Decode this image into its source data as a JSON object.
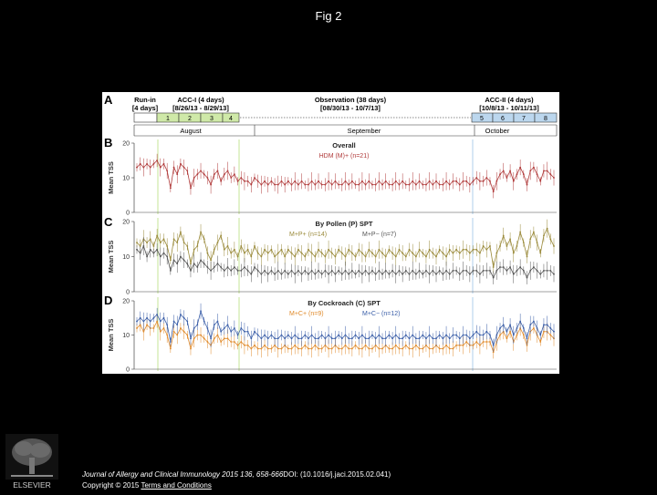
{
  "figure": {
    "title": "Fig 2"
  },
  "timeline": {
    "panel_label": "A",
    "segments": [
      {
        "name": "Run-in",
        "detail": "[4 days]"
      },
      {
        "name": "ACC-I (4 days)",
        "detail": "[8/26/13 - 8/29/13]"
      },
      {
        "name": "Observation (38 days)",
        "detail": "[08/30/13 - 10/7/13]"
      },
      {
        "name": "ACC-II (4 days)",
        "detail": "[10/8/13 - 10/11/13]"
      }
    ],
    "days_acc1": [
      "1",
      "2",
      "3",
      "4"
    ],
    "days_acc2": [
      "5",
      "6",
      "7",
      "8"
    ],
    "months": [
      "August",
      "September",
      "October"
    ]
  },
  "colors": {
    "hdm": "#b03a3a",
    "pollen_pos": "#9a8a3a",
    "pollen_neg": "#555555",
    "cockroach_pos": "#e08a2a",
    "cockroach_neg": "#3a5ea8",
    "acc1_fill": "#cfe9a8",
    "acc2_fill": "#bcd7ee"
  },
  "chart_data": [
    {
      "panel": "B",
      "type": "line",
      "title": "Overall",
      "ylabel": "Mean TSS",
      "ylim": [
        0,
        20
      ],
      "yticks": [
        "0",
        "10",
        "20"
      ],
      "series": [
        {
          "name": "HDM (M)+ (n=21)",
          "color": "#b03a3a",
          "values": [
            13,
            14,
            13,
            14,
            13,
            14,
            15,
            13,
            14,
            12,
            7,
            13,
            11,
            14,
            13,
            12,
            7,
            10,
            11,
            12,
            11,
            10,
            8,
            11,
            12,
            9,
            11,
            12,
            10,
            11,
            9,
            10,
            9,
            9,
            8,
            10,
            9,
            8,
            9,
            8,
            9,
            8,
            8,
            9,
            8,
            9,
            8,
            9,
            8,
            9,
            8,
            8,
            9,
            8,
            9,
            8,
            8,
            9,
            8,
            9,
            8,
            8,
            9,
            8,
            9,
            8,
            8,
            9,
            8,
            9,
            8,
            8,
            9,
            8,
            9,
            8,
            8,
            9,
            8,
            9,
            8,
            8,
            9,
            8,
            9,
            8,
            8,
            9,
            8,
            9,
            8,
            8,
            9,
            8,
            9,
            9,
            8,
            9,
            9,
            8,
            9,
            10,
            9,
            9,
            10,
            9,
            6,
            9,
            11,
            12,
            10,
            12,
            9,
            11,
            13,
            11,
            8,
            12,
            13,
            11,
            9,
            12,
            12,
            11,
            10
          ]
        }
      ]
    },
    {
      "panel": "C",
      "type": "line",
      "title": "By Pollen (P) SPT",
      "ylabel": "Mean TSS",
      "ylim": [
        0,
        20
      ],
      "yticks": [
        "0",
        "10",
        "20"
      ],
      "series": [
        {
          "name": "M+P+ (n=14)",
          "color": "#9a8a3a",
          "values": [
            14,
            13,
            15,
            14,
            15,
            13,
            16,
            14,
            15,
            13,
            9,
            15,
            14,
            17,
            14,
            13,
            8,
            12,
            13,
            17,
            15,
            11,
            9,
            12,
            14,
            16,
            12,
            13,
            11,
            12,
            10,
            13,
            11,
            12,
            10,
            13,
            11,
            10,
            12,
            11,
            12,
            10,
            11,
            12,
            10,
            12,
            11,
            10,
            12,
            11,
            10,
            12,
            11,
            10,
            12,
            11,
            10,
            12,
            11,
            10,
            12,
            11,
            10,
            12,
            11,
            10,
            12,
            11,
            10,
            12,
            11,
            10,
            12,
            11,
            10,
            12,
            11,
            10,
            12,
            11,
            10,
            12,
            11,
            10,
            12,
            11,
            10,
            12,
            11,
            10,
            12,
            11,
            10,
            12,
            11,
            12,
            11,
            12,
            12,
            11,
            12,
            12,
            11,
            13,
            12,
            13,
            7,
            11,
            13,
            16,
            13,
            15,
            11,
            13,
            17,
            14,
            10,
            15,
            17,
            14,
            11,
            16,
            18,
            15,
            13
          ]
        },
        {
          "name": "M+P− (n=7)",
          "color": "#555555",
          "values": [
            12,
            11,
            13,
            10,
            12,
            11,
            12,
            10,
            11,
            10,
            6,
            9,
            8,
            10,
            9,
            8,
            6,
            8,
            7,
            9,
            8,
            7,
            6,
            7,
            8,
            7,
            6,
            7,
            6,
            7,
            6,
            6,
            7,
            6,
            5,
            7,
            6,
            5,
            6,
            5,
            6,
            5,
            6,
            5,
            6,
            5,
            6,
            5,
            6,
            5,
            6,
            5,
            6,
            5,
            6,
            5,
            6,
            5,
            6,
            5,
            6,
            5,
            6,
            5,
            6,
            5,
            6,
            5,
            6,
            5,
            6,
            5,
            6,
            5,
            6,
            5,
            6,
            5,
            6,
            5,
            6,
            5,
            6,
            5,
            6,
            5,
            6,
            5,
            6,
            5,
            6,
            5,
            6,
            5,
            6,
            6,
            5,
            6,
            6,
            5,
            6,
            6,
            5,
            6,
            6,
            6,
            4,
            6,
            7,
            7,
            6,
            7,
            5,
            6,
            7,
            6,
            4,
            6,
            7,
            6,
            5,
            6,
            6,
            6,
            5
          ]
        }
      ]
    },
    {
      "panel": "D",
      "type": "line",
      "title": "By Cockroach (C) SPT",
      "ylabel": "Mean TSS",
      "ylim": [
        0,
        20
      ],
      "yticks": [
        "0",
        "10",
        "20"
      ],
      "series": [
        {
          "name": "M+C+ (n=9)",
          "color": "#e08a2a",
          "values": [
            12,
            13,
            11,
            13,
            12,
            12,
            14,
            11,
            12,
            10,
            6,
            11,
            10,
            12,
            11,
            10,
            6,
            9,
            10,
            10,
            9,
            8,
            7,
            9,
            10,
            8,
            9,
            9,
            8,
            8,
            7,
            8,
            7,
            7,
            6,
            7,
            6,
            6,
            7,
            6,
            6,
            7,
            6,
            6,
            7,
            6,
            6,
            7,
            6,
            6,
            7,
            6,
            6,
            7,
            6,
            6,
            7,
            6,
            6,
            7,
            6,
            6,
            7,
            6,
            6,
            7,
            6,
            6,
            7,
            6,
            6,
            7,
            6,
            6,
            7,
            6,
            6,
            7,
            6,
            6,
            7,
            6,
            6,
            7,
            6,
            6,
            7,
            6,
            6,
            7,
            6,
            6,
            7,
            6,
            6,
            7,
            7,
            7,
            8,
            7,
            7,
            8,
            7,
            8,
            8,
            8,
            5,
            8,
            10,
            11,
            9,
            11,
            8,
            10,
            12,
            10,
            7,
            11,
            12,
            10,
            8,
            11,
            11,
            10,
            9
          ]
        },
        {
          "name": "M+C− (n=12)",
          "color": "#3a5ea8",
          "values": [
            14,
            15,
            14,
            15,
            14,
            15,
            16,
            14,
            15,
            13,
            8,
            14,
            13,
            16,
            15,
            14,
            9,
            12,
            13,
            17,
            14,
            12,
            9,
            13,
            14,
            11,
            12,
            13,
            11,
            12,
            10,
            12,
            11,
            11,
            9,
            11,
            10,
            9,
            10,
            9,
            10,
            9,
            9,
            10,
            9,
            10,
            9,
            10,
            9,
            9,
            10,
            9,
            10,
            9,
            9,
            10,
            9,
            10,
            9,
            9,
            10,
            9,
            10,
            9,
            9,
            10,
            9,
            10,
            9,
            9,
            10,
            9,
            10,
            9,
            9,
            10,
            9,
            10,
            9,
            9,
            10,
            9,
            10,
            9,
            9,
            10,
            9,
            10,
            9,
            9,
            10,
            9,
            10,
            9,
            10,
            10,
            9,
            10,
            10,
            9,
            10,
            11,
            10,
            10,
            11,
            10,
            7,
            10,
            12,
            13,
            11,
            13,
            10,
            12,
            14,
            12,
            9,
            13,
            14,
            12,
            10,
            13,
            13,
            12,
            11
          ]
        }
      ]
    }
  ],
  "footer": {
    "journal": "Journal of Allergy and Clinical Immunology",
    "reference": " 2015 136, 658-666",
    "doi": "DOI: (10.1016/j.jaci.2015.02.041) ",
    "copyright": "Copyright © 2015 ",
    "terms_link": "Terms and Conditions",
    "publisher": "ELSEVIER"
  }
}
